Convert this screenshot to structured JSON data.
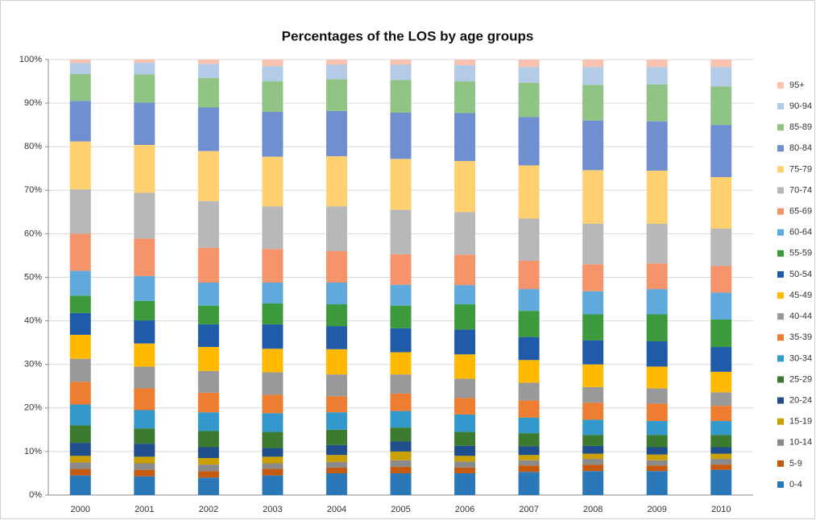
{
  "chart_data": {
    "type": "stacked_bar",
    "title": "Percentages of the LOS by age groups",
    "categories": [
      "2000",
      "2001",
      "2002",
      "2003",
      "2004",
      "2005",
      "2006",
      "2007",
      "2008",
      "2009",
      "2010"
    ],
    "ylim": [
      0,
      100
    ],
    "yticks": [
      {
        "value": 0,
        "label": "0%"
      },
      {
        "value": 10,
        "label": "10%"
      },
      {
        "value": 20,
        "label": "20%"
      },
      {
        "value": 30,
        "label": "30%"
      },
      {
        "value": 40,
        "label": "40%"
      },
      {
        "value": 50,
        "label": "50%"
      },
      {
        "value": 60,
        "label": "60%"
      },
      {
        "value": 70,
        "label": "70%"
      },
      {
        "value": 80,
        "label": "80%"
      },
      {
        "value": 90,
        "label": "90%"
      },
      {
        "value": 100,
        "label": "100%"
      }
    ],
    "grid": true,
    "legend": "right",
    "series": [
      {
        "name": "0-4",
        "color": "#2a78b8",
        "values": [
          4.5,
          4.3,
          4,
          4.5,
          5,
          5,
          5,
          5.3,
          5.5,
          5.5,
          5.8
        ]
      },
      {
        "name": "5-9",
        "color": "#c55a11",
        "values": [
          1.5,
          1.5,
          1.5,
          1.5,
          1.3,
          1.5,
          1.3,
          1.5,
          1.5,
          1.3,
          1.2
        ]
      },
      {
        "name": "10-14",
        "color": "#8a8a8a",
        "values": [
          1.5,
          1.5,
          1.5,
          1.3,
          1.3,
          1.5,
          1.4,
          1.2,
          1.3,
          1.2,
          1.3
        ]
      },
      {
        "name": "15-19",
        "color": "#c9a000",
        "values": [
          1.5,
          1.5,
          1.5,
          1.5,
          1.6,
          2,
          1.3,
          1.2,
          1.2,
          1.3,
          1.2
        ]
      },
      {
        "name": "20-24",
        "color": "#1f4e8c",
        "values": [
          3,
          3,
          2.5,
          2,
          2.3,
          2.3,
          2.3,
          2,
          1.8,
          1.7,
          1.5
        ]
      },
      {
        "name": "25-29",
        "color": "#3b7a2f",
        "values": [
          4,
          3.5,
          3.7,
          3.7,
          3.5,
          3.2,
          3.2,
          3,
          2.5,
          2.8,
          2.8
        ]
      },
      {
        "name": "30-34",
        "color": "#3399cc",
        "values": [
          4.8,
          4.2,
          4.3,
          4.3,
          4,
          3.8,
          4,
          3.6,
          3.5,
          3.2,
          3.2
        ]
      },
      {
        "name": "35-39",
        "color": "#ed7d31",
        "values": [
          5.2,
          5,
          4.5,
          4.2,
          3.7,
          4,
          3.8,
          3.9,
          3.9,
          4,
          3.5
        ]
      },
      {
        "name": "40-44",
        "color": "#999999",
        "values": [
          5.3,
          5,
          5,
          5.2,
          5,
          4.4,
          4.4,
          4.1,
          3.6,
          3.5,
          3.1
        ]
      },
      {
        "name": "45-49",
        "color": "#ffba00",
        "values": [
          5.5,
          5.3,
          5.5,
          5.4,
          5.8,
          5.1,
          5.6,
          5.2,
          5.2,
          5,
          4.7
        ]
      },
      {
        "name": "50-54",
        "color": "#1f5ba8",
        "values": [
          5,
          5.3,
          5.2,
          5.6,
          5.3,
          5.5,
          5.7,
          5.3,
          5.5,
          5.8,
          5.7
        ]
      },
      {
        "name": "55-59",
        "color": "#3c9a3c",
        "values": [
          4,
          4.5,
          4.3,
          4.8,
          5,
          5.2,
          5.8,
          6,
          6,
          6.2,
          6.3
        ]
      },
      {
        "name": "60-64",
        "color": "#5fa9dc",
        "values": [
          5.7,
          5.7,
          5.3,
          4.8,
          5,
          4.8,
          4.4,
          5,
          5.3,
          5.8,
          6.2
        ]
      },
      {
        "name": "65-69",
        "color": "#f5946a",
        "values": [
          8.5,
          8.6,
          8,
          7.7,
          7.2,
          7,
          7,
          6.5,
          6.2,
          5.9,
          6.1
        ]
      },
      {
        "name": "70-74",
        "color": "#b8b8b8",
        "values": [
          10.2,
          10.5,
          10.7,
          9.8,
          10.3,
          10.2,
          9.8,
          9.7,
          9.3,
          9.1,
          8.6
        ]
      },
      {
        "name": "75-79",
        "color": "#ffd070",
        "values": [
          11,
          11,
          11.5,
          11.4,
          11.5,
          11.7,
          11.7,
          12.2,
          12.3,
          12.2,
          11.8
        ]
      },
      {
        "name": "80-84",
        "color": "#6f8fd0",
        "values": [
          9.3,
          9.7,
          10,
          10.3,
          10.4,
          10.6,
          11,
          11.1,
          11.4,
          11.3,
          12
        ]
      },
      {
        "name": "85-89",
        "color": "#8fc484",
        "values": [
          6.2,
          6.5,
          6.8,
          7,
          7.3,
          7.5,
          7.3,
          7.9,
          8.2,
          8.5,
          8.8
        ]
      },
      {
        "name": "90-94",
        "color": "#b4cbe8",
        "values": [
          2.5,
          2.7,
          3.2,
          3.5,
          3.3,
          3.5,
          3.7,
          3.6,
          4.1,
          4,
          4.5
        ]
      },
      {
        "name": "95+",
        "color": "#f8c1b0",
        "values": [
          0.8,
          0.7,
          1,
          1.5,
          1.2,
          1.2,
          1.3,
          1.7,
          1.7,
          1.7,
          1.7
        ]
      }
    ]
  }
}
